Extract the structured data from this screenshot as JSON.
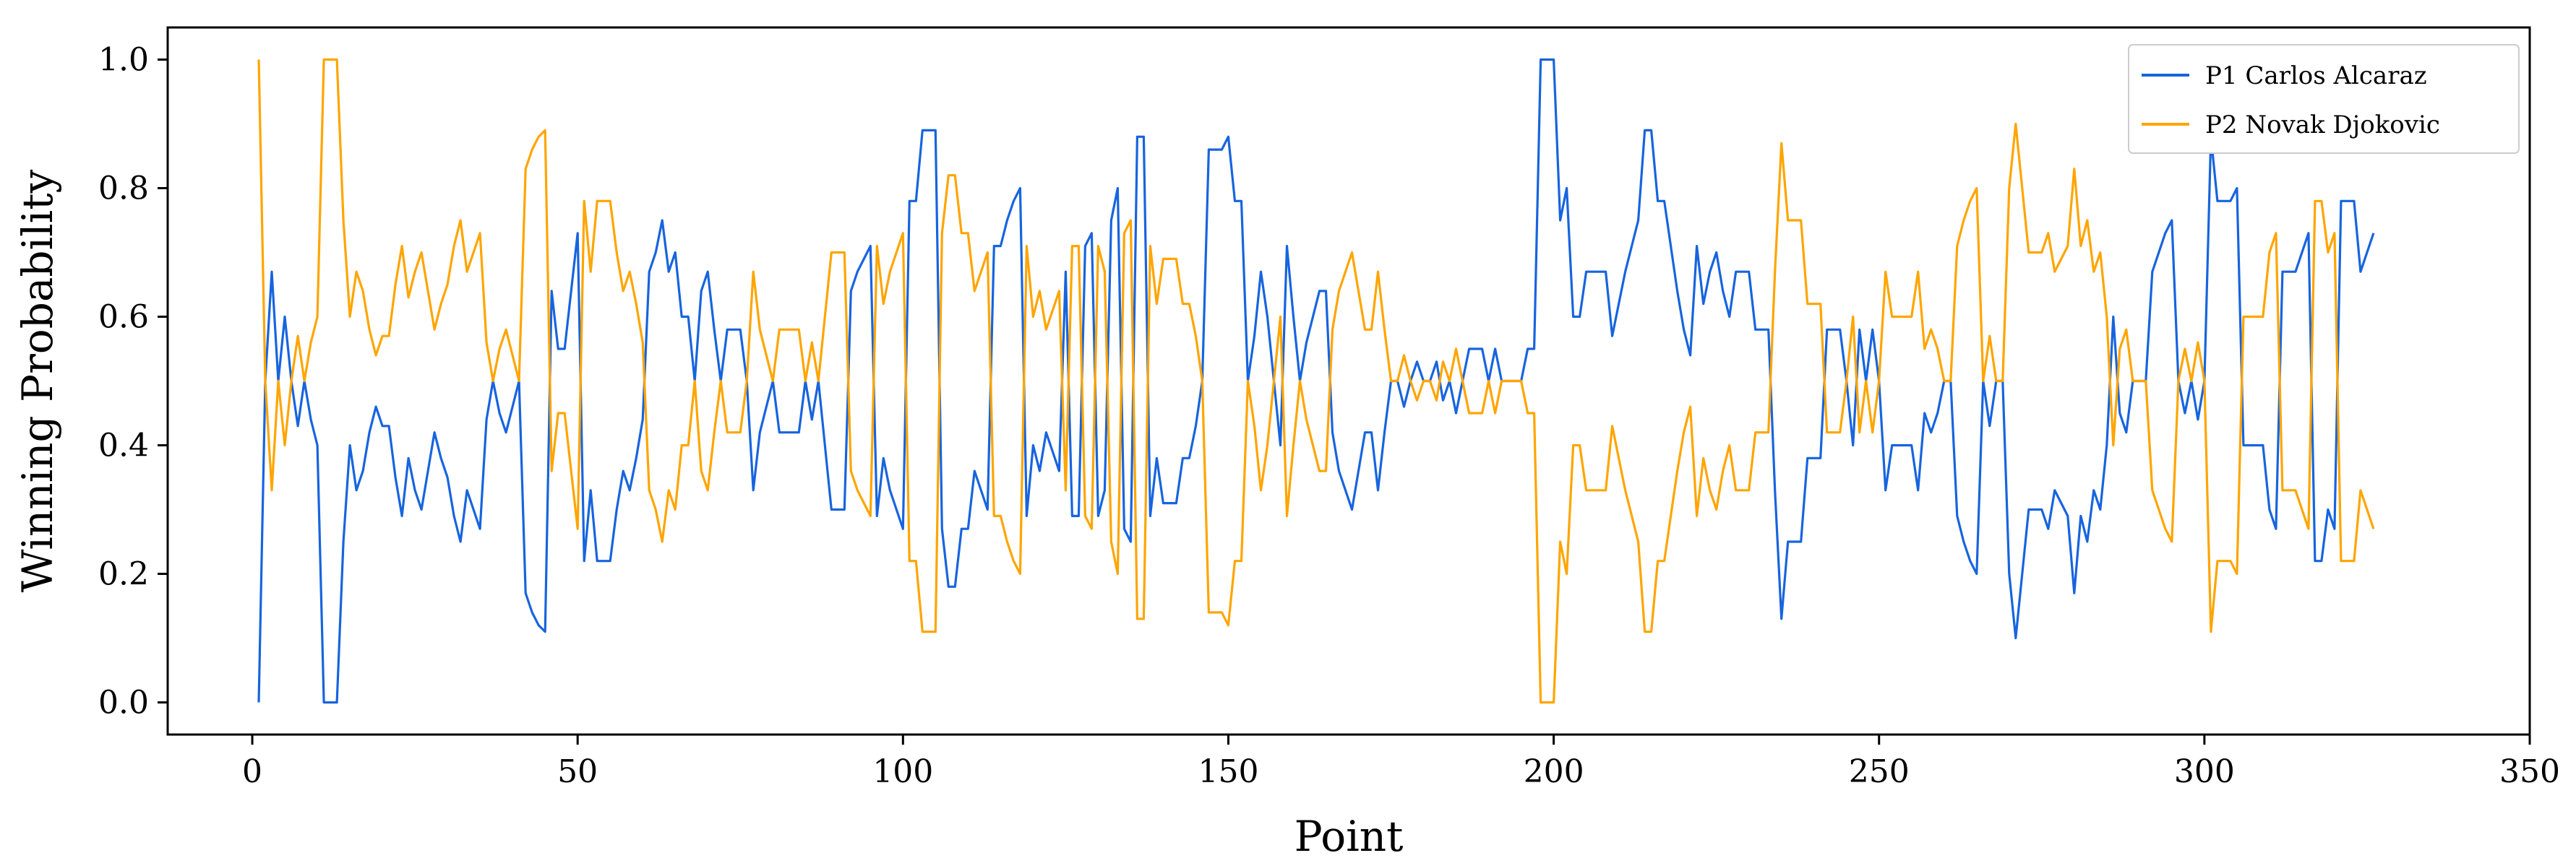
{
  "chart_data": {
    "type": "line",
    "title": "",
    "xlabel": "Point",
    "ylabel": "Winning Probability",
    "xlim": [
      -13,
      350
    ],
    "ylim": [
      -0.05,
      1.05
    ],
    "xticks": [
      0,
      50,
      100,
      150,
      200,
      250,
      300,
      350
    ],
    "xtick_labels": [
      "0",
      "50",
      "100",
      "150",
      "200",
      "250",
      "300",
      "350"
    ],
    "yticks": [
      0.0,
      0.2,
      0.4,
      0.6,
      0.8,
      1.0
    ],
    "ytick_labels": [
      "0.0",
      "0.2",
      "0.4",
      "0.6",
      "0.8",
      "1.0"
    ],
    "grid": false,
    "legend_position": "top-right",
    "colors": {
      "p1": "#1764de",
      "p2": "#ffa500",
      "axes": "#000000"
    },
    "x_start": 1,
    "series": [
      {
        "name": "P1 Carlos Alcaraz",
        "color": "#1764de",
        "values": [
          0.0,
          0.5,
          0.67,
          0.5,
          0.6,
          0.5,
          0.43,
          0.5,
          0.44,
          0.4,
          0.0,
          0.0,
          0.0,
          0.25,
          0.4,
          0.33,
          0.36,
          0.42,
          0.46,
          0.43,
          0.43,
          0.35,
          0.29,
          0.38,
          0.33,
          0.3,
          0.36,
          0.42,
          0.38,
          0.35,
          0.29,
          0.25,
          0.33,
          0.3,
          0.27,
          0.44,
          0.5,
          0.45,
          0.42,
          0.46,
          0.5,
          0.17,
          0.14,
          0.12,
          0.11,
          0.64,
          0.55,
          0.55,
          0.64,
          0.73,
          0.22,
          0.33,
          0.22,
          0.22,
          0.22,
          0.3,
          0.36,
          0.33,
          0.38,
          0.44,
          0.67,
          0.7,
          0.75,
          0.67,
          0.7,
          0.6,
          0.6,
          0.5,
          0.64,
          0.67,
          0.58,
          0.5,
          0.58,
          0.58,
          0.58,
          0.5,
          0.33,
          0.42,
          0.46,
          0.5,
          0.42,
          0.42,
          0.42,
          0.42,
          0.5,
          0.44,
          0.5,
          0.4,
          0.3,
          0.3,
          0.3,
          0.64,
          0.67,
          0.69,
          0.71,
          0.29,
          0.38,
          0.33,
          0.3,
          0.27,
          0.78,
          0.78,
          0.89,
          0.89,
          0.89,
          0.27,
          0.18,
          0.18,
          0.27,
          0.27,
          0.36,
          0.33,
          0.3,
          0.71,
          0.71,
          0.75,
          0.78,
          0.8,
          0.29,
          0.4,
          0.36,
          0.42,
          0.39,
          0.36,
          0.67,
          0.29,
          0.29,
          0.71,
          0.73,
          0.29,
          0.33,
          0.75,
          0.8,
          0.27,
          0.25,
          0.88,
          0.88,
          0.29,
          0.38,
          0.31,
          0.31,
          0.31,
          0.38,
          0.38,
          0.43,
          0.5,
          0.86,
          0.86,
          0.86,
          0.88,
          0.78,
          0.78,
          0.5,
          0.57,
          0.67,
          0.6,
          0.5,
          0.4,
          0.71,
          0.6,
          0.5,
          0.56,
          0.6,
          0.64,
          0.64,
          0.42,
          0.36,
          0.33,
          0.3,
          0.36,
          0.42,
          0.42,
          0.33,
          0.42,
          0.5,
          0.5,
          0.46,
          0.5,
          0.53,
          0.5,
          0.5,
          0.53,
          0.47,
          0.5,
          0.45,
          0.5,
          0.55,
          0.55,
          0.55,
          0.5,
          0.55,
          0.5,
          0.5,
          0.5,
          0.5,
          0.55,
          0.55,
          1.0,
          1.0,
          1.0,
          0.75,
          0.8,
          0.6,
          0.6,
          0.67,
          0.67,
          0.67,
          0.67,
          0.57,
          0.62,
          0.67,
          0.71,
          0.75,
          0.89,
          0.89,
          0.78,
          0.78,
          0.71,
          0.64,
          0.58,
          0.54,
          0.71,
          0.62,
          0.67,
          0.7,
          0.64,
          0.6,
          0.67,
          0.67,
          0.67,
          0.58,
          0.58,
          0.58,
          0.33,
          0.13,
          0.25,
          0.25,
          0.25,
          0.38,
          0.38,
          0.38,
          0.58,
          0.58,
          0.58,
          0.5,
          0.4,
          0.58,
          0.5,
          0.58,
          0.5,
          0.33,
          0.4,
          0.4,
          0.4,
          0.4,
          0.33,
          0.45,
          0.42,
          0.45,
          0.5,
          0.5,
          0.29,
          0.25,
          0.22,
          0.2,
          0.5,
          0.43,
          0.5,
          0.5,
          0.2,
          0.1,
          0.2,
          0.3,
          0.3,
          0.3,
          0.27,
          0.33,
          0.31,
          0.29,
          0.17,
          0.29,
          0.25,
          0.33,
          0.3,
          0.4,
          0.6,
          0.45,
          0.42,
          0.5,
          0.5,
          0.5,
          0.67,
          0.7,
          0.73,
          0.75,
          0.5,
          0.45,
          0.5,
          0.44,
          0.5,
          0.88,
          0.78,
          0.78,
          0.78,
          0.8,
          0.4,
          0.4,
          0.4,
          0.4,
          0.3,
          0.27,
          0.67,
          0.67,
          0.67,
          0.7,
          0.73,
          0.22,
          0.22,
          0.3,
          0.27,
          0.78,
          0.78,
          0.78,
          0.67,
          0.7,
          0.73
        ]
      },
      {
        "name": "P2 Novak Djokovic",
        "color": "#ffa500",
        "values": [
          1.0,
          0.5,
          0.33,
          0.5,
          0.4,
          0.5,
          0.57,
          0.5,
          0.56,
          0.6,
          1.0,
          1.0,
          1.0,
          0.75,
          0.6,
          0.67,
          0.64,
          0.58,
          0.54,
          0.57,
          0.57,
          0.65,
          0.71,
          0.63,
          0.67,
          0.7,
          0.64,
          0.58,
          0.62,
          0.65,
          0.71,
          0.75,
          0.67,
          0.7,
          0.73,
          0.56,
          0.5,
          0.55,
          0.58,
          0.54,
          0.5,
          0.83,
          0.86,
          0.88,
          0.89,
          0.36,
          0.45,
          0.45,
          0.36,
          0.27,
          0.78,
          0.67,
          0.78,
          0.78,
          0.78,
          0.7,
          0.64,
          0.67,
          0.62,
          0.56,
          0.33,
          0.3,
          0.25,
          0.33,
          0.3,
          0.4,
          0.4,
          0.5,
          0.36,
          0.33,
          0.42,
          0.5,
          0.42,
          0.42,
          0.42,
          0.5,
          0.67,
          0.58,
          0.54,
          0.5,
          0.58,
          0.58,
          0.58,
          0.58,
          0.5,
          0.56,
          0.5,
          0.6,
          0.7,
          0.7,
          0.7,
          0.36,
          0.33,
          0.31,
          0.29,
          0.71,
          0.62,
          0.67,
          0.7,
          0.73,
          0.22,
          0.22,
          0.11,
          0.11,
          0.11,
          0.73,
          0.82,
          0.82,
          0.73,
          0.73,
          0.64,
          0.67,
          0.7,
          0.29,
          0.29,
          0.25,
          0.22,
          0.2,
          0.71,
          0.6,
          0.64,
          0.58,
          0.61,
          0.64,
          0.33,
          0.71,
          0.71,
          0.29,
          0.27,
          0.71,
          0.67,
          0.25,
          0.2,
          0.73,
          0.75,
          0.13,
          0.13,
          0.71,
          0.62,
          0.69,
          0.69,
          0.69,
          0.62,
          0.62,
          0.57,
          0.5,
          0.14,
          0.14,
          0.14,
          0.12,
          0.22,
          0.22,
          0.5,
          0.43,
          0.33,
          0.4,
          0.5,
          0.6,
          0.29,
          0.4,
          0.5,
          0.44,
          0.4,
          0.36,
          0.36,
          0.58,
          0.64,
          0.67,
          0.7,
          0.64,
          0.58,
          0.58,
          0.67,
          0.58,
          0.5,
          0.5,
          0.54,
          0.5,
          0.47,
          0.5,
          0.5,
          0.47,
          0.53,
          0.5,
          0.55,
          0.5,
          0.45,
          0.45,
          0.45,
          0.5,
          0.45,
          0.5,
          0.5,
          0.5,
          0.5,
          0.45,
          0.45,
          0.0,
          0.0,
          0.0,
          0.25,
          0.2,
          0.4,
          0.4,
          0.33,
          0.33,
          0.33,
          0.33,
          0.43,
          0.38,
          0.33,
          0.29,
          0.25,
          0.11,
          0.11,
          0.22,
          0.22,
          0.29,
          0.36,
          0.42,
          0.46,
          0.29,
          0.38,
          0.33,
          0.3,
          0.36,
          0.4,
          0.33,
          0.33,
          0.33,
          0.42,
          0.42,
          0.42,
          0.67,
          0.87,
          0.75,
          0.75,
          0.75,
          0.62,
          0.62,
          0.62,
          0.42,
          0.42,
          0.42,
          0.5,
          0.6,
          0.42,
          0.5,
          0.42,
          0.5,
          0.67,
          0.6,
          0.6,
          0.6,
          0.6,
          0.67,
          0.55,
          0.58,
          0.55,
          0.5,
          0.5,
          0.71,
          0.75,
          0.78,
          0.8,
          0.5,
          0.57,
          0.5,
          0.5,
          0.8,
          0.9,
          0.8,
          0.7,
          0.7,
          0.7,
          0.73,
          0.67,
          0.69,
          0.71,
          0.83,
          0.71,
          0.75,
          0.67,
          0.7,
          0.6,
          0.4,
          0.55,
          0.58,
          0.5,
          0.5,
          0.5,
          0.33,
          0.3,
          0.27,
          0.25,
          0.5,
          0.55,
          0.5,
          0.56,
          0.5,
          0.11,
          0.22,
          0.22,
          0.22,
          0.2,
          0.6,
          0.6,
          0.6,
          0.6,
          0.7,
          0.73,
          0.33,
          0.33,
          0.33,
          0.3,
          0.27,
          0.78,
          0.78,
          0.7,
          0.73,
          0.22,
          0.22,
          0.22,
          0.33,
          0.3,
          0.27
        ]
      }
    ]
  }
}
